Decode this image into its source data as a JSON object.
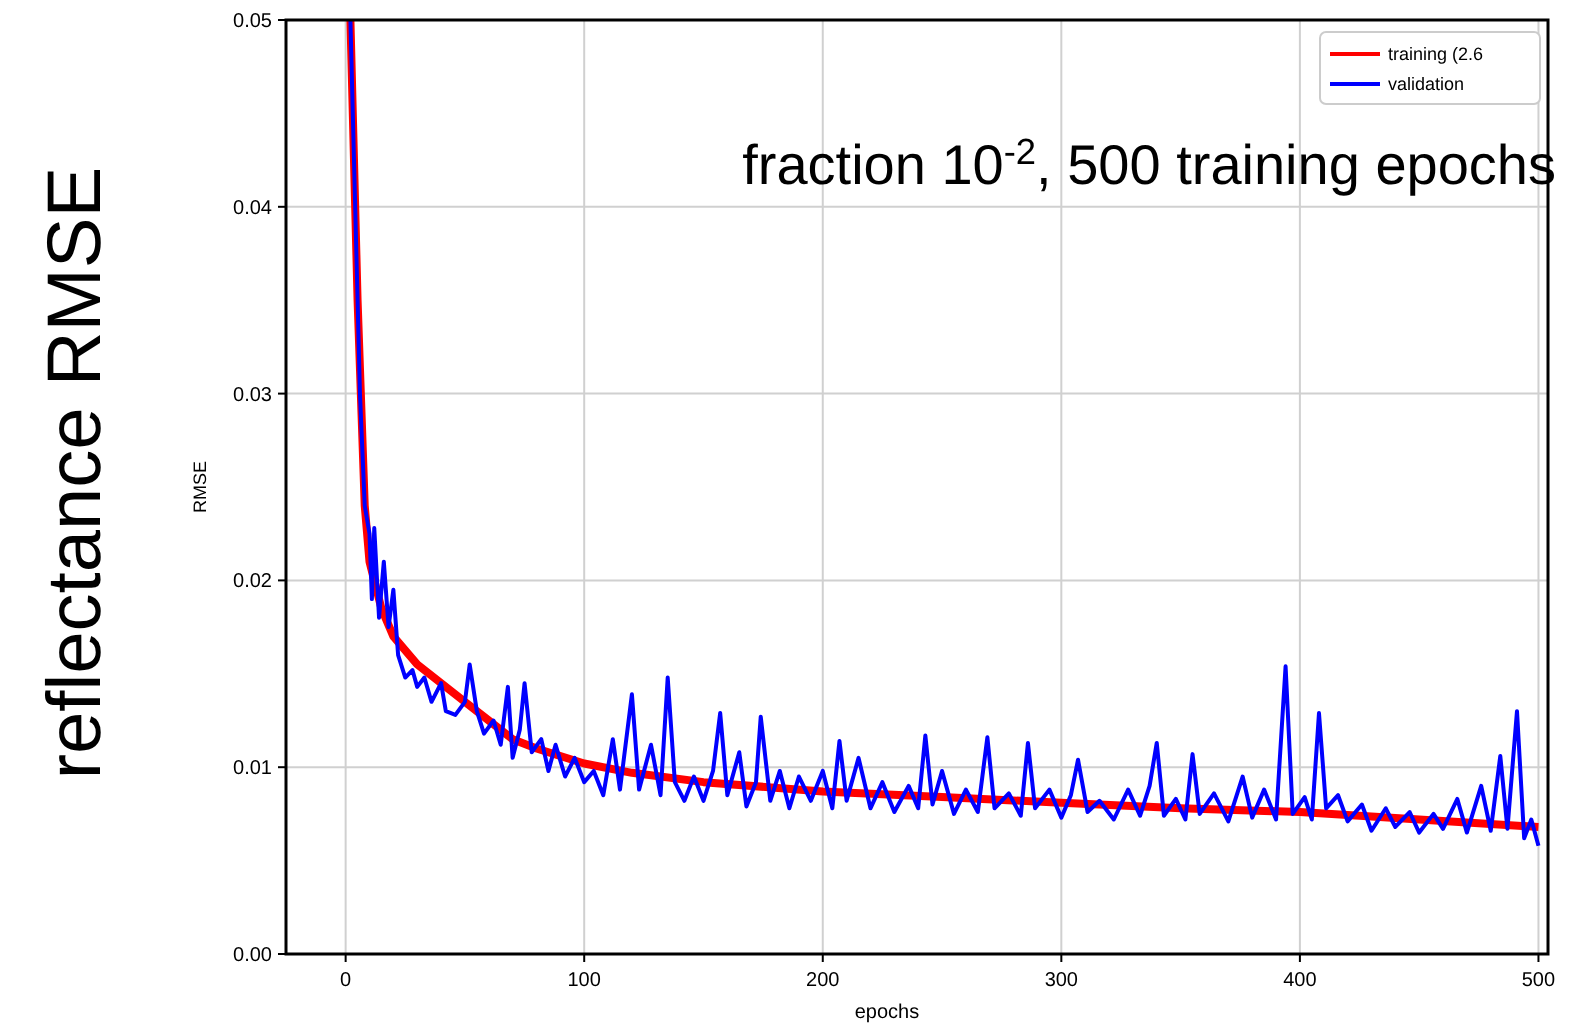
{
  "chart_data": {
    "type": "line",
    "title": "fraction 10$^{-2}$, 500 training epochs",
    "xlabel": "epochs",
    "ylabel": "RMSE",
    "annotations": [
      "reflectance RMSE"
    ],
    "xlim": [
      -25,
      504
    ],
    "ylim": [
      0,
      0.05
    ],
    "xticks": [
      0,
      100,
      200,
      300,
      400,
      500
    ],
    "yticks": [
      {
        "value": 0,
        "label": "0.00"
      },
      {
        "value": 0.01,
        "label": "0.01"
      },
      {
        "value": 0.02,
        "label": "0.02"
      },
      {
        "value": 0.03,
        "label": "0.03"
      },
      {
        "value": 0.04,
        "label": "0.04"
      },
      {
        "value": 0.05,
        "label": "0.05"
      }
    ],
    "grid": true,
    "legend": "top right",
    "line_style": "solid",
    "marker": "none",
    "series": [
      {
        "name": "training (2.6",
        "color": "#ff0000",
        "x": [
          2,
          5,
          8,
          10,
          15,
          20,
          30,
          40,
          50,
          60,
          70,
          80,
          100,
          120,
          150,
          200,
          250,
          300,
          350,
          400,
          450,
          500
        ],
        "values": [
          0.05,
          0.035,
          0.024,
          0.021,
          0.0185,
          0.017,
          0.0155,
          0.0145,
          0.0135,
          0.0125,
          0.0115,
          0.011,
          0.0102,
          0.0097,
          0.0092,
          0.0087,
          0.0084,
          0.0081,
          0.0078,
          0.0076,
          0.0072,
          0.0068
        ]
      },
      {
        "name": "validation",
        "color": "#0000ff",
        "x": [
          2,
          4,
          6,
          8,
          10,
          11,
          12,
          14,
          16,
          18,
          20,
          22,
          25,
          28,
          30,
          33,
          36,
          40,
          42,
          46,
          50,
          52,
          55,
          58,
          62,
          65,
          68,
          70,
          73,
          75,
          78,
          82,
          85,
          88,
          92,
          96,
          100,
          104,
          108,
          112,
          115,
          120,
          123,
          128,
          132,
          135,
          138,
          142,
          146,
          150,
          154,
          157,
          160,
          165,
          168,
          172,
          174,
          178,
          182,
          186,
          190,
          195,
          200,
          204,
          207,
          210,
          215,
          220,
          225,
          230,
          236,
          240,
          243,
          246,
          250,
          255,
          260,
          265,
          269,
          272,
          278,
          283,
          286,
          289,
          295,
          300,
          304,
          307,
          311,
          316,
          322,
          328,
          333,
          337,
          340,
          343,
          348,
          352,
          355,
          358,
          364,
          370,
          376,
          380,
          385,
          390,
          394,
          397,
          402,
          405,
          408,
          411,
          416,
          420,
          426,
          430,
          436,
          440,
          446,
          450,
          456,
          460,
          466,
          470,
          476,
          480,
          484,
          487,
          491,
          494,
          497,
          500
        ],
        "values": [
          0.05,
          0.04,
          0.03,
          0.024,
          0.0225,
          0.019,
          0.0228,
          0.018,
          0.021,
          0.0175,
          0.0195,
          0.016,
          0.0148,
          0.0152,
          0.0143,
          0.0148,
          0.0135,
          0.0145,
          0.013,
          0.0128,
          0.0135,
          0.0155,
          0.013,
          0.0118,
          0.0125,
          0.0112,
          0.0143,
          0.0105,
          0.012,
          0.0145,
          0.0108,
          0.0115,
          0.0098,
          0.0112,
          0.0095,
          0.0105,
          0.0092,
          0.0098,
          0.0085,
          0.0115,
          0.0088,
          0.0139,
          0.0088,
          0.0112,
          0.0085,
          0.0148,
          0.0092,
          0.0082,
          0.0095,
          0.0082,
          0.0098,
          0.0129,
          0.0085,
          0.0108,
          0.0079,
          0.0092,
          0.0127,
          0.0082,
          0.0098,
          0.0078,
          0.0095,
          0.0082,
          0.0098,
          0.0078,
          0.0114,
          0.0082,
          0.0105,
          0.0078,
          0.0092,
          0.0076,
          0.009,
          0.0078,
          0.0117,
          0.008,
          0.0098,
          0.0075,
          0.0088,
          0.0076,
          0.0116,
          0.0078,
          0.0086,
          0.0074,
          0.0113,
          0.0078,
          0.0088,
          0.0073,
          0.0085,
          0.0104,
          0.0076,
          0.0082,
          0.0072,
          0.0088,
          0.0074,
          0.009,
          0.0113,
          0.0074,
          0.0083,
          0.0072,
          0.0107,
          0.0075,
          0.0086,
          0.0071,
          0.0095,
          0.0073,
          0.0088,
          0.0072,
          0.0154,
          0.0075,
          0.0084,
          0.0072,
          0.0129,
          0.0078,
          0.0085,
          0.0071,
          0.008,
          0.0066,
          0.0078,
          0.0068,
          0.0076,
          0.0065,
          0.0075,
          0.0067,
          0.0083,
          0.0065,
          0.009,
          0.0066,
          0.0106,
          0.0067,
          0.013,
          0.0062,
          0.0072,
          0.0058
        ]
      }
    ]
  }
}
